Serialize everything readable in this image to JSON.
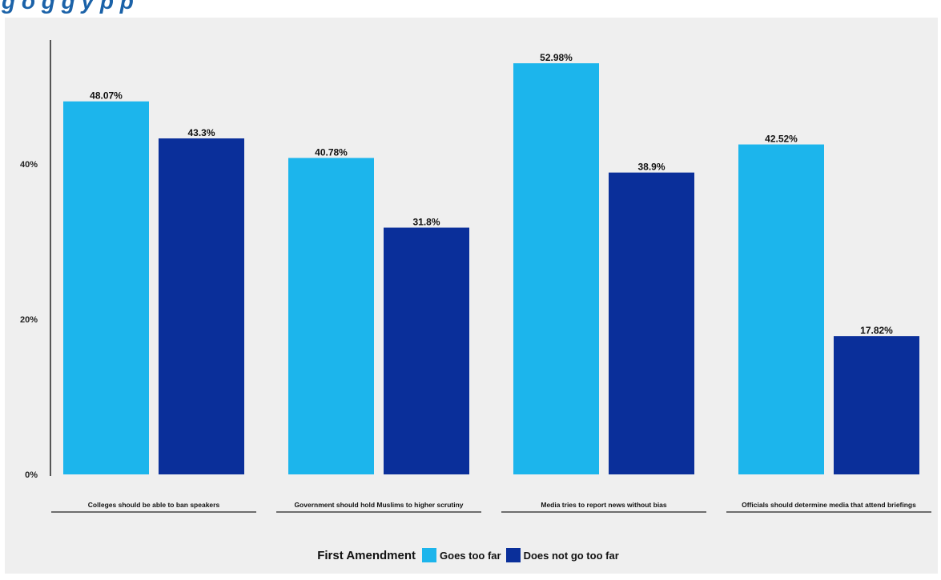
{
  "header": {
    "title": "g        o        g g        y      p    p"
  },
  "legend": {
    "title": "First Amendment",
    "items": [
      {
        "label": "Goes too far",
        "color": "#1cb5ec"
      },
      {
        "label": "Does not go too far",
        "color": "#0a2f9a"
      }
    ]
  },
  "chart_data": {
    "type": "bar",
    "categories": [
      "Colleges should be able to ban speakers",
      "Government should hold Muslims to higher scrutiny",
      "Media tries to report news without bias",
      "Officials should determine media that attend briefings"
    ],
    "series": [
      {
        "name": "Goes too far",
        "color": "#1cb5ec",
        "values": [
          48.07,
          40.78,
          52.98,
          42.52
        ],
        "labels": [
          "48.07%",
          "40.78%",
          "52.98%",
          "42.52%"
        ]
      },
      {
        "name": "Does not go too far",
        "color": "#0a2f9a",
        "values": [
          43.3,
          31.8,
          38.9,
          17.82
        ],
        "labels": [
          "43.3%",
          "31.8%",
          "38.9%",
          "17.82%"
        ]
      }
    ],
    "yticks": [
      0,
      20,
      40
    ],
    "ytick_labels": [
      "0%",
      "20%",
      "40%"
    ],
    "ylim": [
      0,
      55
    ],
    "grid": false,
    "legend_position": "bottom"
  }
}
